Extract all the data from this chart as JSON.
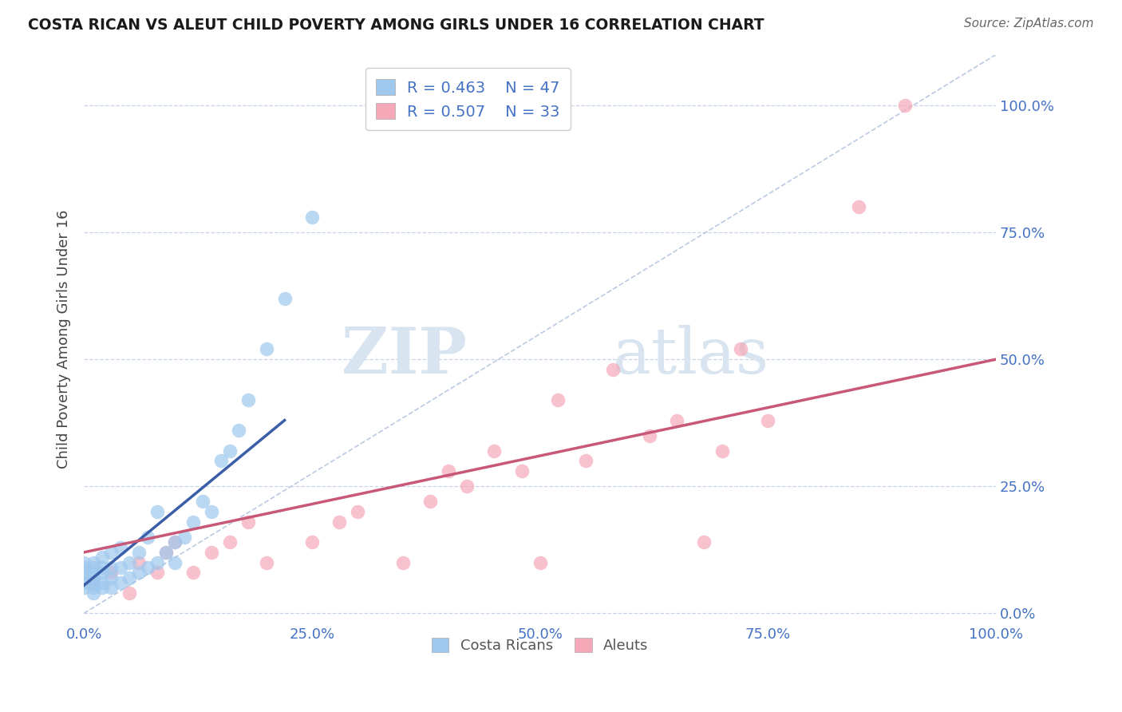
{
  "title": "COSTA RICAN VS ALEUT CHILD POVERTY AMONG GIRLS UNDER 16 CORRELATION CHART",
  "source": "Source: ZipAtlas.com",
  "ylabel": "Child Poverty Among Girls Under 16",
  "xlim": [
    0.0,
    1.0
  ],
  "ylim": [
    -0.02,
    1.1
  ],
  "yticks": [
    0.0,
    0.25,
    0.5,
    0.75,
    1.0
  ],
  "ytick_labels": [
    "0.0%",
    "25.0%",
    "50.0%",
    "75.0%",
    "100.0%"
  ],
  "xticks": [
    0.0,
    0.25,
    0.5,
    0.75,
    1.0
  ],
  "xtick_labels": [
    "0.0%",
    "25.0%",
    "50.0%",
    "75.0%",
    "100.0%"
  ],
  "legend_r1": "R = 0.463",
  "legend_n1": "N = 47",
  "legend_r2": "R = 0.507",
  "legend_n2": "N = 33",
  "color_blue": "#9EC8EE",
  "color_pink": "#F4A8B8",
  "color_blue_line": "#3A5FA8",
  "color_pink_line": "#C85878",
  "color_dashed": "#AABCDC",
  "color_text_blue": "#4472C4",
  "color_grid": "#C8D4E8",
  "watermark_color": "#D8E4F0",
  "costa_rican_x": [
    0.0,
    0.0,
    0.0,
    0.0,
    0.0,
    0.0,
    0.01,
    0.01,
    0.01,
    0.01,
    0.01,
    0.01,
    0.01,
    0.02,
    0.02,
    0.02,
    0.02,
    0.02,
    0.03,
    0.03,
    0.03,
    0.03,
    0.04,
    0.04,
    0.04,
    0.05,
    0.05,
    0.06,
    0.06,
    0.07,
    0.07,
    0.08,
    0.08,
    0.09,
    0.1,
    0.1,
    0.11,
    0.12,
    0.13,
    0.14,
    0.15,
    0.16,
    0.17,
    0.18,
    0.2,
    0.22,
    0.25
  ],
  "costa_rican_y": [
    0.05,
    0.06,
    0.07,
    0.08,
    0.09,
    0.1,
    0.04,
    0.05,
    0.06,
    0.07,
    0.08,
    0.09,
    0.1,
    0.05,
    0.06,
    0.08,
    0.09,
    0.11,
    0.05,
    0.07,
    0.09,
    0.12,
    0.06,
    0.09,
    0.13,
    0.07,
    0.1,
    0.08,
    0.12,
    0.09,
    0.15,
    0.1,
    0.2,
    0.12,
    0.1,
    0.14,
    0.15,
    0.18,
    0.22,
    0.2,
    0.3,
    0.32,
    0.36,
    0.42,
    0.52,
    0.62,
    0.78
  ],
  "aleut_x": [
    0.01,
    0.03,
    0.05,
    0.06,
    0.08,
    0.09,
    0.1,
    0.12,
    0.14,
    0.16,
    0.18,
    0.2,
    0.25,
    0.28,
    0.3,
    0.35,
    0.38,
    0.4,
    0.42,
    0.45,
    0.48,
    0.5,
    0.52,
    0.55,
    0.58,
    0.62,
    0.65,
    0.68,
    0.7,
    0.72,
    0.75,
    0.85,
    0.9
  ],
  "aleut_y": [
    0.06,
    0.08,
    0.04,
    0.1,
    0.08,
    0.12,
    0.14,
    0.08,
    0.12,
    0.14,
    0.18,
    0.1,
    0.14,
    0.18,
    0.2,
    0.1,
    0.22,
    0.28,
    0.25,
    0.32,
    0.28,
    0.1,
    0.42,
    0.3,
    0.48,
    0.35,
    0.38,
    0.14,
    0.32,
    0.52,
    0.38,
    0.8,
    1.0
  ],
  "blue_line_x": [
    0.0,
    0.22
  ],
  "blue_line_y": [
    0.055,
    0.38
  ],
  "pink_line_x": [
    0.0,
    1.0
  ],
  "pink_line_y": [
    0.12,
    0.5
  ]
}
